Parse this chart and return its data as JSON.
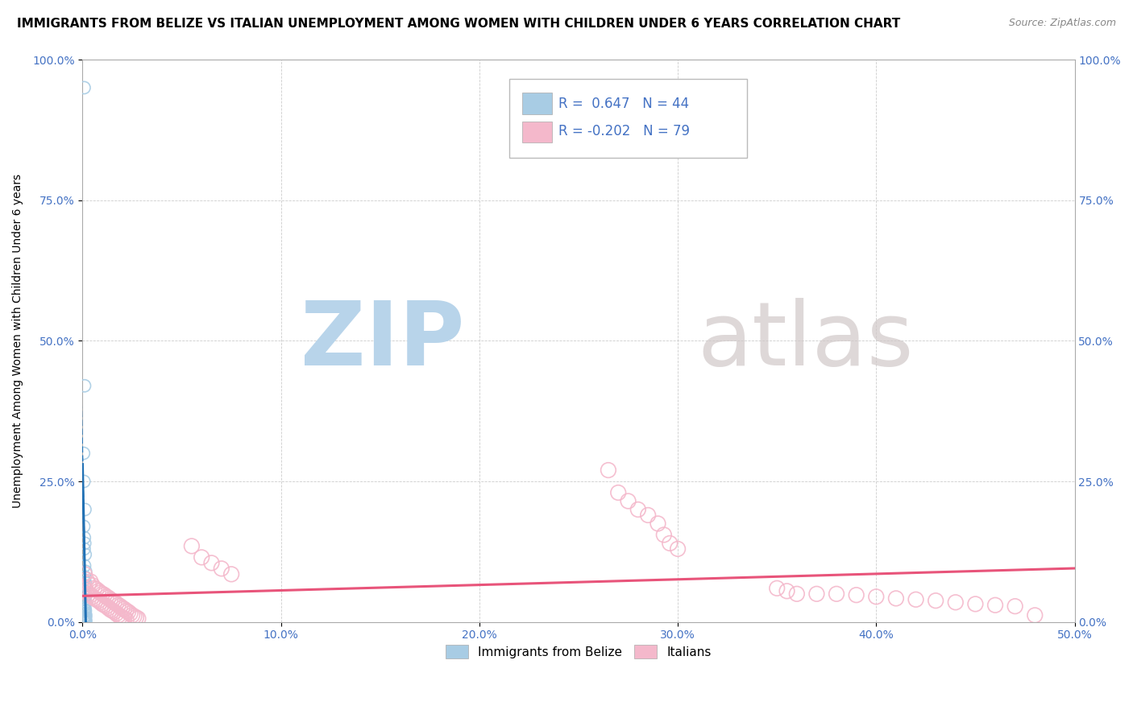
{
  "title": "IMMIGRANTS FROM BELIZE VS ITALIAN UNEMPLOYMENT AMONG WOMEN WITH CHILDREN UNDER 6 YEARS CORRELATION CHART",
  "source": "Source: ZipAtlas.com",
  "ylabel": "Unemployment Among Women with Children Under 6 years",
  "xlim": [
    0.0,
    0.5
  ],
  "ylim": [
    0.0,
    1.0
  ],
  "xticks": [
    0.0,
    0.1,
    0.2,
    0.3,
    0.4,
    0.5
  ],
  "yticks": [
    0.0,
    0.25,
    0.5,
    0.75,
    1.0
  ],
  "xtick_labels": [
    "0.0%",
    "10.0%",
    "20.0%",
    "30.0%",
    "40.0%",
    "50.0%"
  ],
  "ytick_labels": [
    "0.0%",
    "25.0%",
    "50.0%",
    "75.0%",
    "100.0%"
  ],
  "blue_R": 0.647,
  "blue_N": 44,
  "pink_R": -0.202,
  "pink_N": 79,
  "blue_color": "#a8cce4",
  "pink_color": "#f4b8cb",
  "blue_line_color": "#2171b5",
  "pink_line_color": "#e8547a",
  "blue_scatter": [
    [
      0.0008,
      0.95
    ],
    [
      0.001,
      0.42
    ],
    [
      0.0005,
      0.3
    ],
    [
      0.0007,
      0.25
    ],
    [
      0.0012,
      0.2
    ],
    [
      0.0006,
      0.17
    ],
    [
      0.0009,
      0.15
    ],
    [
      0.0011,
      0.14
    ],
    [
      0.0008,
      0.13
    ],
    [
      0.0013,
      0.12
    ],
    [
      0.001,
      0.1
    ],
    [
      0.0015,
      0.09
    ],
    [
      0.0012,
      0.08
    ],
    [
      0.0008,
      0.075
    ],
    [
      0.0014,
      0.07
    ],
    [
      0.001,
      0.065
    ],
    [
      0.0016,
      0.06
    ],
    [
      0.0012,
      0.055
    ],
    [
      0.0009,
      0.05
    ],
    [
      0.0017,
      0.048
    ],
    [
      0.0013,
      0.045
    ],
    [
      0.0011,
      0.04
    ],
    [
      0.0015,
      0.035
    ],
    [
      0.0008,
      0.03
    ],
    [
      0.0012,
      0.025
    ],
    [
      0.001,
      0.022
    ],
    [
      0.0014,
      0.02
    ],
    [
      0.0009,
      0.018
    ],
    [
      0.0013,
      0.015
    ],
    [
      0.0016,
      0.012
    ],
    [
      0.0011,
      0.01
    ],
    [
      0.0008,
      0.008
    ],
    [
      0.0015,
      0.007
    ],
    [
      0.0012,
      0.006
    ],
    [
      0.001,
      0.005
    ],
    [
      0.0007,
      0.004
    ],
    [
      0.0013,
      0.003
    ],
    [
      0.0009,
      0.003
    ],
    [
      0.0011,
      0.002
    ],
    [
      0.0014,
      0.002
    ],
    [
      0.0008,
      0.001
    ],
    [
      0.0016,
      0.001
    ],
    [
      0.0012,
      0.001
    ],
    [
      0.001,
      0.0
    ]
  ],
  "pink_scatter": [
    [
      0.001,
      0.085
    ],
    [
      0.002,
      0.075
    ],
    [
      0.003,
      0.068
    ],
    [
      0.004,
      0.072
    ],
    [
      0.005,
      0.065
    ],
    [
      0.006,
      0.06
    ],
    [
      0.007,
      0.058
    ],
    [
      0.008,
      0.055
    ],
    [
      0.009,
      0.052
    ],
    [
      0.01,
      0.05
    ],
    [
      0.011,
      0.048
    ],
    [
      0.012,
      0.045
    ],
    [
      0.013,
      0.043
    ],
    [
      0.014,
      0.04
    ],
    [
      0.015,
      0.038
    ],
    [
      0.016,
      0.035
    ],
    [
      0.017,
      0.033
    ],
    [
      0.018,
      0.03
    ],
    [
      0.019,
      0.028
    ],
    [
      0.02,
      0.025
    ],
    [
      0.021,
      0.023
    ],
    [
      0.022,
      0.02
    ],
    [
      0.023,
      0.018
    ],
    [
      0.024,
      0.015
    ],
    [
      0.025,
      0.012
    ],
    [
      0.026,
      0.01
    ],
    [
      0.027,
      0.008
    ],
    [
      0.028,
      0.006
    ],
    [
      0.001,
      0.06
    ],
    [
      0.002,
      0.055
    ],
    [
      0.003,
      0.05
    ],
    [
      0.004,
      0.048
    ],
    [
      0.005,
      0.045
    ],
    [
      0.006,
      0.042
    ],
    [
      0.007,
      0.04
    ],
    [
      0.008,
      0.038
    ],
    [
      0.009,
      0.035
    ],
    [
      0.01,
      0.032
    ],
    [
      0.011,
      0.03
    ],
    [
      0.012,
      0.028
    ],
    [
      0.013,
      0.025
    ],
    [
      0.014,
      0.022
    ],
    [
      0.015,
      0.02
    ],
    [
      0.016,
      0.018
    ],
    [
      0.017,
      0.015
    ],
    [
      0.018,
      0.012
    ],
    [
      0.019,
      0.01
    ],
    [
      0.02,
      0.008
    ],
    [
      0.021,
      0.006
    ],
    [
      0.022,
      0.004
    ],
    [
      0.265,
      0.27
    ],
    [
      0.27,
      0.23
    ],
    [
      0.275,
      0.215
    ],
    [
      0.28,
      0.2
    ],
    [
      0.285,
      0.19
    ],
    [
      0.29,
      0.175
    ],
    [
      0.293,
      0.155
    ],
    [
      0.296,
      0.14
    ],
    [
      0.3,
      0.13
    ],
    [
      0.055,
      0.135
    ],
    [
      0.06,
      0.115
    ],
    [
      0.065,
      0.105
    ],
    [
      0.07,
      0.095
    ],
    [
      0.075,
      0.085
    ],
    [
      0.35,
      0.06
    ],
    [
      0.355,
      0.055
    ],
    [
      0.36,
      0.05
    ],
    [
      0.37,
      0.05
    ],
    [
      0.38,
      0.05
    ],
    [
      0.39,
      0.048
    ],
    [
      0.4,
      0.045
    ],
    [
      0.41,
      0.042
    ],
    [
      0.42,
      0.04
    ],
    [
      0.43,
      0.038
    ],
    [
      0.44,
      0.035
    ],
    [
      0.45,
      0.032
    ],
    [
      0.46,
      0.03
    ],
    [
      0.47,
      0.028
    ],
    [
      0.48,
      0.012
    ]
  ],
  "watermark_zip": "ZIP",
  "watermark_atlas": "atlas",
  "watermark_color": "#c8dff0",
  "background_color": "#ffffff",
  "title_fontsize": 11,
  "axis_label_fontsize": 10,
  "tick_fontsize": 10
}
